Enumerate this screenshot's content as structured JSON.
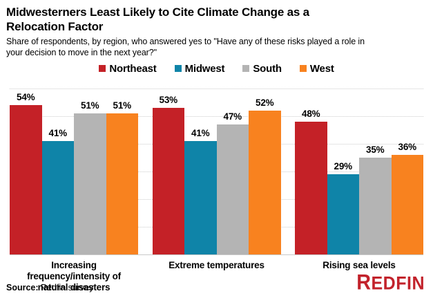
{
  "title": "Midwesterners Least Likely to Cite Climate Change as a Relocation Factor",
  "subtitle": "Share of respondents, by region, who answered yes to \"Have any of these risks played a role in your decision to move in the next year?\"",
  "chart_data": {
    "type": "bar",
    "categories": [
      "Increasing frequency/intensity of\nnatural disasters",
      "Extreme temperatures",
      "Rising sea levels"
    ],
    "series": [
      {
        "name": "Northeast",
        "color": "#c42127",
        "values": [
          54,
          53,
          48
        ]
      },
      {
        "name": "Midwest",
        "color": "#0f84a8",
        "values": [
          41,
          41,
          29
        ]
      },
      {
        "name": "South",
        "color": "#b4b4b4",
        "values": [
          51,
          47,
          35
        ]
      },
      {
        "name": "West",
        "color": "#f8821f",
        "values": [
          51,
          52,
          36
        ]
      }
    ],
    "value_suffix": "%",
    "ylim": [
      0,
      60
    ],
    "grid_interval": 10,
    "grid_style": "dotted horizontal",
    "legend_position": "top center",
    "xlabel": "",
    "ylabel": ""
  },
  "footer": {
    "source_label": "Source:",
    "source_text": " Redfin survey",
    "logo_text": "REDFIN",
    "logo_color": "#c2222b"
  }
}
